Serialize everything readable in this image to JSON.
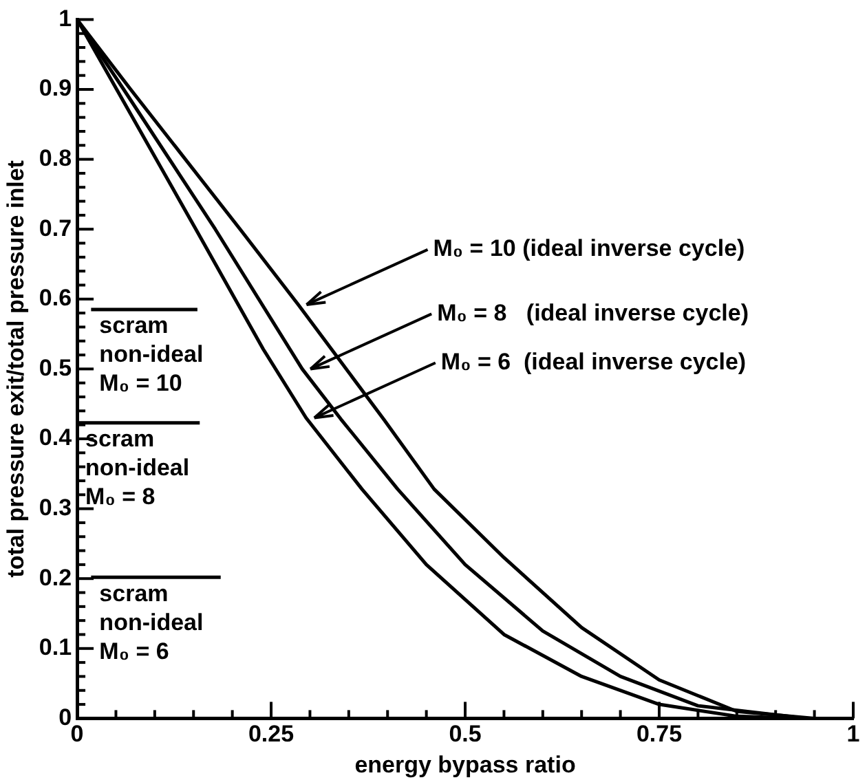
{
  "chart_data": {
    "type": "line",
    "xlabel": "energy bypass ratio",
    "ylabel": "total pressure exit/total pressure inlet",
    "xlim": [
      0,
      1
    ],
    "ylim": [
      0,
      1
    ],
    "xticks": [
      0,
      {
        "value": 0.05,
        "label": null
      },
      {
        "value": 0.1,
        "label": null
      },
      {
        "value": 0.15,
        "label": null
      },
      {
        "value": 0.2,
        "label": null
      },
      0.25,
      {
        "value": 0.3,
        "label": null
      },
      {
        "value": 0.35,
        "label": null
      },
      {
        "value": 0.4,
        "label": null
      },
      {
        "value": 0.45,
        "label": null
      },
      0.5,
      {
        "value": 0.55,
        "label": null
      },
      {
        "value": 0.6,
        "label": null
      },
      {
        "value": 0.65,
        "label": null
      },
      {
        "value": 0.7,
        "label": null
      },
      0.75,
      {
        "value": 0.8,
        "label": null
      },
      {
        "value": 0.85,
        "label": null
      },
      {
        "value": 0.9,
        "label": null
      },
      {
        "value": 0.95,
        "label": null
      },
      1
    ],
    "yticks": [
      0,
      {
        "value": 0.02,
        "label": null
      },
      {
        "value": 0.04,
        "label": null
      },
      {
        "value": 0.06,
        "label": null
      },
      {
        "value": 0.08,
        "label": null
      },
      0.1,
      {
        "value": 0.12,
        "label": null
      },
      {
        "value": 0.14,
        "label": null
      },
      {
        "value": 0.16,
        "label": null
      },
      {
        "value": 0.18,
        "label": null
      },
      0.2,
      {
        "value": 0.22,
        "label": null
      },
      {
        "value": 0.24,
        "label": null
      },
      {
        "value": 0.26,
        "label": null
      },
      {
        "value": 0.28,
        "label": null
      },
      0.3,
      {
        "value": 0.32,
        "label": null
      },
      {
        "value": 0.34,
        "label": null
      },
      {
        "value": 0.36,
        "label": null
      },
      {
        "value": 0.38,
        "label": null
      },
      0.4,
      {
        "value": 0.42,
        "label": null
      },
      {
        "value": 0.44,
        "label": null
      },
      {
        "value": 0.46,
        "label": null
      },
      {
        "value": 0.48,
        "label": null
      },
      0.5,
      {
        "value": 0.52,
        "label": null
      },
      {
        "value": 0.54,
        "label": null
      },
      {
        "value": 0.56,
        "label": null
      },
      {
        "value": 0.58,
        "label": null
      },
      0.6,
      {
        "value": 0.62,
        "label": null
      },
      {
        "value": 0.64,
        "label": null
      },
      {
        "value": 0.66,
        "label": null
      },
      {
        "value": 0.68,
        "label": null
      },
      0.7,
      {
        "value": 0.72,
        "label": null
      },
      {
        "value": 0.74,
        "label": null
      },
      {
        "value": 0.76,
        "label": null
      },
      {
        "value": 0.78,
        "label": null
      },
      0.8,
      {
        "value": 0.82,
        "label": null
      },
      {
        "value": 0.84,
        "label": null
      },
      {
        "value": 0.86,
        "label": null
      },
      {
        "value": 0.88,
        "label": null
      },
      0.9,
      {
        "value": 0.92,
        "label": null
      },
      {
        "value": 0.94,
        "label": null
      },
      {
        "value": 0.96,
        "label": null
      },
      {
        "value": 0.98,
        "label": null
      },
      1
    ],
    "grid": false,
    "legend": "left",
    "marker": "none",
    "line_style": "solid",
    "series": [
      {
        "color": "#000000",
        "x": [
          0,
          0.069,
          0.21,
          0.285,
          0.395,
          0.46,
          0.55,
          0.65,
          0.75,
          0.85,
          0.95
        ],
        "values": [
          1,
          0.9,
          0.7,
          0.592,
          0.428,
          0.328,
          0.23,
          0.13,
          0.055,
          0.01,
          0
        ]
      },
      {
        "color": "#000000",
        "x": [
          0,
          0.06,
          0.178,
          0.29,
          0.34,
          0.413,
          0.5,
          0.6,
          0.7,
          0.8,
          0.94
        ],
        "values": [
          1,
          0.9,
          0.7,
          0.5,
          0.428,
          0.328,
          0.22,
          0.125,
          0.06,
          0.018,
          0
        ]
      },
      {
        "color": "#000000",
        "x": [
          0,
          0.051,
          0.153,
          0.24,
          0.295,
          0.367,
          0.45,
          0.55,
          0.65,
          0.75,
          0.85,
          0.93
        ],
        "values": [
          1,
          0.9,
          0.7,
          0.528,
          0.43,
          0.328,
          0.22,
          0.12,
          0.06,
          0.02,
          0.003,
          0
        ]
      },
      {
        "name": "scram\nnon-ideal\nM₀ = 10",
        "color": "#000000",
        "x": [
          0.018,
          0.155
        ],
        "values": [
          0.585,
          0.585
        ]
      },
      {
        "name": "scram\nnon-ideal\nM₀ = 8",
        "color": "#000000",
        "x": [
          0,
          0.158
        ],
        "values": [
          0.423,
          0.423
        ]
      },
      {
        "name": "scram\nnon-ideal\nM₀ = 6",
        "color": "#000000",
        "x": [
          0.018,
          0.185
        ],
        "values": [
          0.202,
          0.202
        ]
      }
    ],
    "annotations": [
      {
        "text": "M₀ = 10 (ideal inverse cycle)",
        "x": 0.285,
        "y": 0.592
      },
      {
        "text": "M₀ = 8   (ideal inverse cycle)",
        "x": 0.29,
        "y": 0.5
      },
      {
        "text": "M₀ = 6  (ideal inverse cycle)",
        "x": 0.295,
        "y": 0.43
      }
    ]
  }
}
